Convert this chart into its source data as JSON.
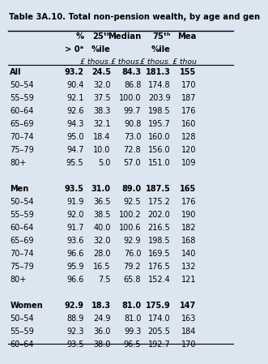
{
  "title": "Table 3A.10. Total non-pension wealth, by age and gen",
  "col_units": [
    "",
    "",
    "£ thous.",
    "£ thous.",
    "£ thous.",
    "£ thou"
  ],
  "rows": [
    [
      "All",
      "93.2",
      "24.5",
      "84.3",
      "181.3",
      "155"
    ],
    [
      "50–54",
      "90.4",
      "32.0",
      "86.8",
      "174.8",
      "170"
    ],
    [
      "55–59",
      "92.1",
      "37.5",
      "100.0",
      "203.9",
      "187"
    ],
    [
      "60–64",
      "92.6",
      "38.3",
      "99.7",
      "198.5",
      "176"
    ],
    [
      "65–69",
      "94.3",
      "32.1",
      "90.8",
      "195.7",
      "160"
    ],
    [
      "70–74",
      "95.0",
      "18.4",
      "73.0",
      "160.0",
      "128"
    ],
    [
      "75–79",
      "94.7",
      "10.0",
      "72.8",
      "156.0",
      "120"
    ],
    [
      "80+",
      "95.5",
      "5.0",
      "57.0",
      "151.0",
      "109"
    ],
    [
      "",
      "",
      "",
      "",
      "",
      ""
    ],
    [
      "Men",
      "93.5",
      "31.0",
      "89.0",
      "187.5",
      "165"
    ],
    [
      "50–54",
      "91.9",
      "36.5",
      "92.5",
      "175.2",
      "176"
    ],
    [
      "55–59",
      "92.0",
      "38.5",
      "100.2",
      "202.0",
      "190"
    ],
    [
      "60–64",
      "91.7",
      "40.0",
      "100.6",
      "216.5",
      "182"
    ],
    [
      "65–69",
      "93.6",
      "32.0",
      "92.9",
      "198.5",
      "168"
    ],
    [
      "70–74",
      "96.6",
      "28.0",
      "76.0",
      "169.5",
      "140"
    ],
    [
      "75–79",
      "95.9",
      "16.5",
      "79.2",
      "176.5",
      "132"
    ],
    [
      "80+",
      "96.6",
      "7.5",
      "65.8",
      "152.4",
      "121"
    ],
    [
      "",
      "",
      "",
      "",
      "",
      ""
    ],
    [
      "Women",
      "92.9",
      "18.3",
      "81.0",
      "175.9",
      "147"
    ],
    [
      "50–54",
      "88.9",
      "24.9",
      "81.0",
      "174.0",
      "163"
    ],
    [
      "55–59",
      "92.3",
      "36.0",
      "99.3",
      "205.5",
      "184"
    ],
    [
      "60–64",
      "93.5",
      "38.0",
      "96.5",
      "192.7",
      "170"
    ]
  ],
  "bold_rows": [
    0,
    9,
    18
  ],
  "separator_rows": [
    8,
    17
  ],
  "bg_color": "#dce6f1",
  "title_fontsize": 7.2,
  "cell_fontsize": 7.0,
  "header_fontsize": 7.2
}
